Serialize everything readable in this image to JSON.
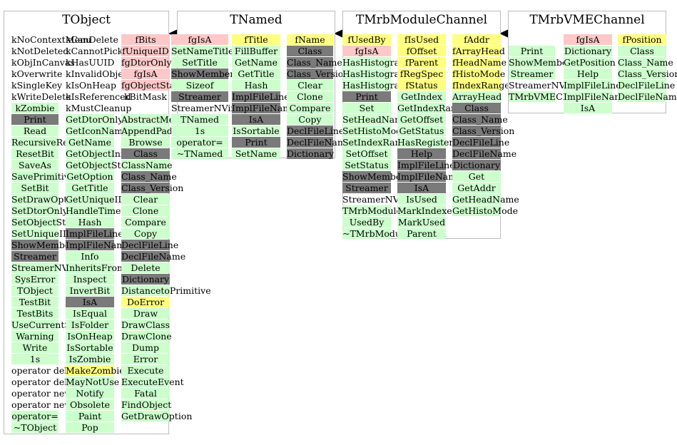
{
  "classes": [
    {
      "name": "TObject",
      "columns": [
        [
          "kNoContextMenu",
          "kNotDeleted",
          "kObjInCanvas",
          "kOverwrite",
          "kSingleKey",
          "kWriteDelete",
          "kZombie",
          "Print",
          "Read",
          "RecursiveRemove",
          "ResetBit",
          "SaveAs",
          "SavePrimitive",
          "SetBit",
          "SetDrawOption",
          "SetDtorOnly",
          "SetObjectStat",
          "SetUniqueID",
          "ShowMembers",
          "Streamer",
          "StreamerNVirtual",
          "SysError",
          "TObject",
          "TestBit",
          "TestBits",
          "UseCurrentStyle",
          "Warning",
          "Write",
          "1s",
          "operator delete",
          "operator delete[]",
          "operator new",
          "operator new[]",
          "operator=",
          "~TObject"
        ],
        [
          "kCanDelete",
          "kCannotPick",
          "kHasUUID",
          "kInvalidObject",
          "kIsOnHeap",
          "kIsReferenced",
          "kMustCleanup",
          "GetDtorOnly",
          "GetIconName",
          "GetName",
          "GetObjectInfo",
          "GetObjectStat",
          "GetOption",
          "GetTitle",
          "GetUniqueID",
          "HandleTimer",
          "Hash",
          "ImplFileLine",
          "ImplFileName",
          "Info",
          "InheritsFrom",
          "Inspect",
          "InvertBit",
          "IsA",
          "IsEqual",
          "IsFolder",
          "IsOnHeap",
          "IsSortable",
          "IsZombie",
          "MakeZombie",
          "MayNotUse",
          "Notify",
          "Obsolete",
          "Paint",
          "Pop"
        ],
        [
          "fBits",
          "fUniqueID",
          "fgDtorOnly",
          "fgIsA",
          "fgObjectStat",
          "kBitMask",
          "",
          "AbstractMethod",
          "AppendPad",
          "Browse",
          "Class",
          "ClassName",
          "Class_Name",
          "Class_Version",
          "Clear",
          "Clone",
          "Compare",
          "Copy",
          "DeclFileLine",
          "DeclFileName",
          "Delete",
          "Dictionary",
          "DistancetoPrimitive",
          "DoError",
          "Draw",
          "DrawClass",
          "DrawClone",
          "Dump",
          "Error",
          "Execute",
          "ExecuteEvent",
          "Fatal",
          "FindObject",
          "GetDrawOption"
        ]
      ]
    },
    {
      "name": "TNamed",
      "columns": [
        [
          "fgIsA",
          "SetNameTitle",
          "SetTitle",
          "ShowMembers",
          "Sizeof",
          "Streamer",
          "StreamerNVirtual",
          "TNamed",
          "1s",
          "operator=",
          "~TNamed"
        ],
        [
          "fTitle",
          "FillBuffer",
          "GetName",
          "GetTitle",
          "Hash",
          "ImplFileLine",
          "ImplFileName",
          "IsA",
          "IsSortable",
          "Print",
          "SetName"
        ],
        [
          "fName",
          "Class",
          "Class_Name",
          "Class_Version",
          "Clear",
          "Clone",
          "Compare",
          "Copy",
          "DeclFileLine",
          "DeclFileName",
          "Dictionary"
        ]
      ]
    },
    {
      "name": "TMrbModuleChannel",
      "columns": [
        [
          "fUsedBy",
          "fgIsA",
          "HasHistogramDefined",
          "HasHistogramFalse",
          "HasHistogramTrue",
          "Print",
          "Set",
          "SetHeadName",
          "SetHistoMode",
          "SetIndexRange",
          "SetOffset",
          "SetStatus",
          "ShowMembers",
          "Streamer",
          "StreamerNVirtual",
          "TMrbModuleChannel",
          "UsedBy",
          "~TMrbModuleChannel"
        ],
        [
          "fIsUsed",
          "fOffset",
          "fParent",
          "fRegSpec",
          "fStatus",
          "GetIndex",
          "GetIndexRange",
          "GetOffset",
          "GetStatus",
          "HasRegisters",
          "Help",
          "ImplFileLine",
          "ImplFileName",
          "IsA",
          "IsUsed",
          "MarkIndexed",
          "MarkUsed",
          "Parent"
        ],
        [
          "fAddr",
          "fArrayHead",
          "fHeadName",
          "fHistoMode",
          "fIndexRange",
          "ArrayHead",
          "Class",
          "Class_Name",
          "Class_Version",
          "DeclFileLine",
          "DeclFileName",
          "Dictionary",
          "Get",
          "GetAddr",
          "GetHeadName",
          "GetHistoMode"
        ]
      ]
    },
    {
      "name": "TMrbVMEChannel",
      "columns": [
        [
          "",
          "Print",
          "ShowMembers",
          "Streamer",
          "StreamerNVirtual",
          "TMrbVMEChannel"
        ],
        [
          "fgIsA",
          "Dictionary",
          "GetPosition",
          "Help",
          "ImplFileLine",
          "ImplFileName",
          "IsA"
        ],
        [
          "fPosition",
          "Class",
          "Class_Name",
          "Class_Version",
          "DeclFileLine",
          "DeclFileName"
        ]
      ]
    }
  ],
  "colors": {
    "method": "#ccffcc",
    "gray": "#7a7a7a",
    "member": "#ffc8c8",
    "highlight": "#ffff80",
    "border": "#bdbdbd",
    "arrow": "#000000"
  }
}
